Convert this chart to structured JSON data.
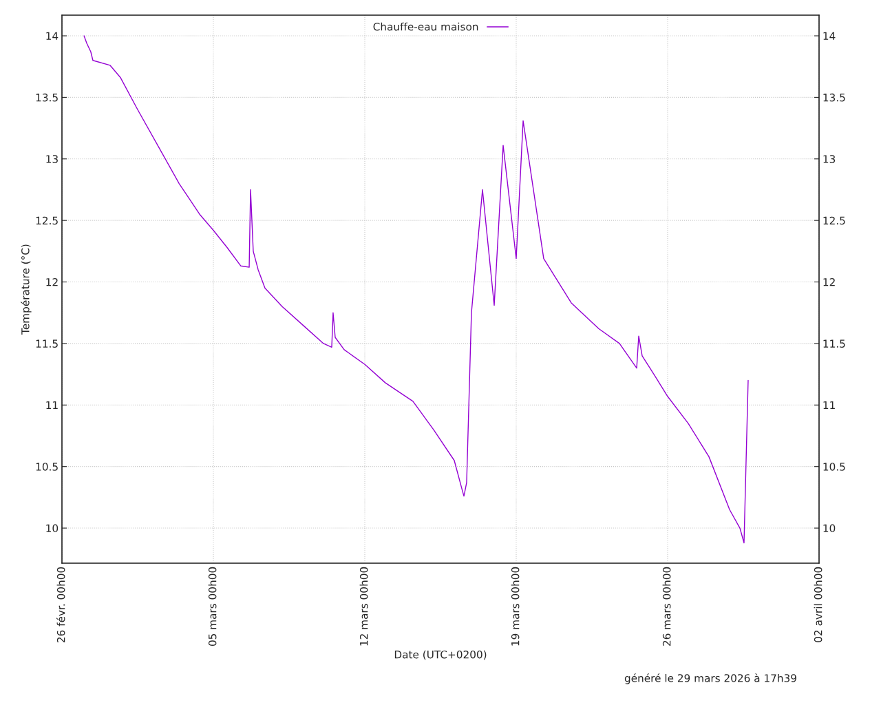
{
  "chart_data": {
    "type": "line",
    "xlabel": "Date (UTC+0200)",
    "ylabel": "Température (°C)",
    "annotations": [
      "généré le 29 mars 2026 à 17h39"
    ],
    "x": [
      "2026-02-27T00:30",
      "2026-02-27T03:30",
      "2026-02-27T08:00",
      "2026-02-27T10:20",
      "2026-02-28T05:30",
      "2026-02-28T17:00",
      "2026-03-01T12:00",
      "2026-03-02T11:00",
      "2026-03-03T10:00",
      "2026-03-04T08:45",
      "2026-03-05T00:00",
      "2026-03-05T15:15",
      "2026-03-06T06:30",
      "2026-03-06T15:45",
      "2026-03-06T17:15",
      "2026-03-06T20:15",
      "2026-03-07T01:40",
      "2026-03-07T09:15",
      "2026-03-08T04:20",
      "2026-03-09T03:15",
      "2026-03-10T02:10",
      "2026-03-10T11:20",
      "2026-03-10T12:50",
      "2026-03-10T15:10",
      "2026-03-11T01:05",
      "2026-03-12T00:00",
      "2026-03-12T22:55",
      "2026-03-14T05:25",
      "2026-03-15T04:20",
      "2026-03-16T03:15",
      "2026-03-16T12:25",
      "2026-03-16T14:00",
      "2026-03-16T17:00",
      "2026-03-16T22:20",
      "2026-03-17T10:35",
      "2026-03-17T23:35",
      "2026-03-18T09:30",
      "2026-03-19T00:00",
      "2026-03-19T07:40",
      "2026-03-20T06:30",
      "2026-03-21T13:05",
      "2026-03-22T19:40",
      "2026-03-23T18:35",
      "2026-03-24T13:40",
      "2026-03-24T15:55",
      "2026-03-24T19:45",
      "2026-03-25T08:45",
      "2026-03-26T00:00",
      "2026-03-26T22:55",
      "2026-03-27T21:50",
      "2026-03-28T20:45",
      "2026-03-29T08:10",
      "2026-03-29T12:45",
      "2026-03-29T17:20"
    ],
    "series": [
      {
        "name": "Chauffe-eau maison",
        "color": "#9400d3",
        "values": [
          14.0,
          13.94,
          13.87,
          13.8,
          13.76,
          13.66,
          13.4,
          13.1,
          12.8,
          12.55,
          12.42,
          12.28,
          12.13,
          12.12,
          12.75,
          12.25,
          12.1,
          11.95,
          11.8,
          11.65,
          11.5,
          11.47,
          11.75,
          11.55,
          11.45,
          11.33,
          11.18,
          11.03,
          10.8,
          10.55,
          10.3,
          10.26,
          10.37,
          11.75,
          12.75,
          11.81,
          13.11,
          12.19,
          13.31,
          12.19,
          11.83,
          11.62,
          11.5,
          11.3,
          11.56,
          11.4,
          11.25,
          11.07,
          10.85,
          10.58,
          10.15,
          10.0,
          9.88,
          11.2
        ]
      }
    ],
    "xlim": [
      "2026-02-26",
      "2026-04-02"
    ],
    "xticks": [
      {
        "value": "2026-02-26",
        "label": "26 févr. 00h00"
      },
      {
        "value": "2026-03-05",
        "label": "05 mars 00h00"
      },
      {
        "value": "2026-03-12",
        "label": "12 mars 00h00"
      },
      {
        "value": "2026-03-19",
        "label": "19 mars 00h00"
      },
      {
        "value": "2026-03-26",
        "label": "26 mars 00h00"
      },
      {
        "value": "2026-04-02",
        "label": "02 avril 00h00"
      }
    ],
    "ylim": [
      9.715,
      14.168
    ],
    "yticks": [
      10,
      10.5,
      11,
      11.5,
      12,
      12.5,
      13,
      13.5,
      14
    ],
    "y2lim": [
      9.715,
      14.168
    ],
    "y2ticks": [
      10,
      10.5,
      11,
      11.5,
      12,
      12.5,
      13,
      13.5,
      14
    ],
    "grid": true,
    "legend": "top",
    "line_style": "solid",
    "marker": "none"
  }
}
